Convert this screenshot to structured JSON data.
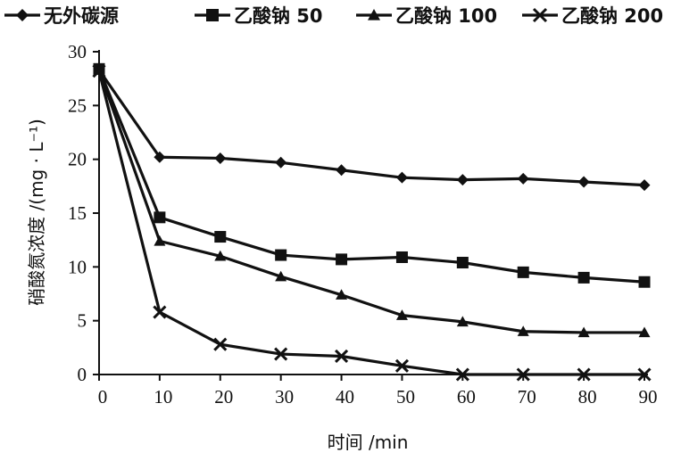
{
  "chart_data": {
    "type": "line",
    "title": "",
    "xlabel": "时间 /min",
    "ylabel": "硝酸氮浓度 /(mg · L⁻¹)",
    "x": [
      0,
      10,
      20,
      30,
      40,
      50,
      60,
      70,
      80,
      90
    ],
    "xlim": [
      0,
      90
    ],
    "ylim": [
      0,
      30
    ],
    "xticks": [
      "0",
      "10",
      "20",
      "30",
      "40",
      "50",
      "60",
      "70",
      "80",
      "90"
    ],
    "yticks": [
      "0",
      "5",
      "10",
      "15",
      "20",
      "25",
      "30"
    ],
    "grid": false,
    "legend_position": "top",
    "series": [
      {
        "name": "无外碳源",
        "marker": "diamond",
        "values": [
          28.3,
          20.2,
          20.1,
          19.7,
          19.0,
          18.3,
          18.1,
          18.2,
          17.9,
          17.6
        ]
      },
      {
        "name": "乙酸钠 50",
        "marker": "square",
        "values": [
          28.4,
          14.6,
          12.8,
          11.1,
          10.7,
          10.9,
          10.4,
          9.5,
          9.0,
          8.6
        ]
      },
      {
        "name": "乙酸钠 100",
        "marker": "triangle",
        "values": [
          28.3,
          12.4,
          11.0,
          9.1,
          7.4,
          5.5,
          4.9,
          4.0,
          3.9,
          3.9
        ]
      },
      {
        "name": "乙酸钠 200",
        "marker": "x",
        "values": [
          28.2,
          5.8,
          2.8,
          1.9,
          1.7,
          0.8,
          0.0,
          0.0,
          0.0,
          0.0
        ]
      }
    ]
  }
}
